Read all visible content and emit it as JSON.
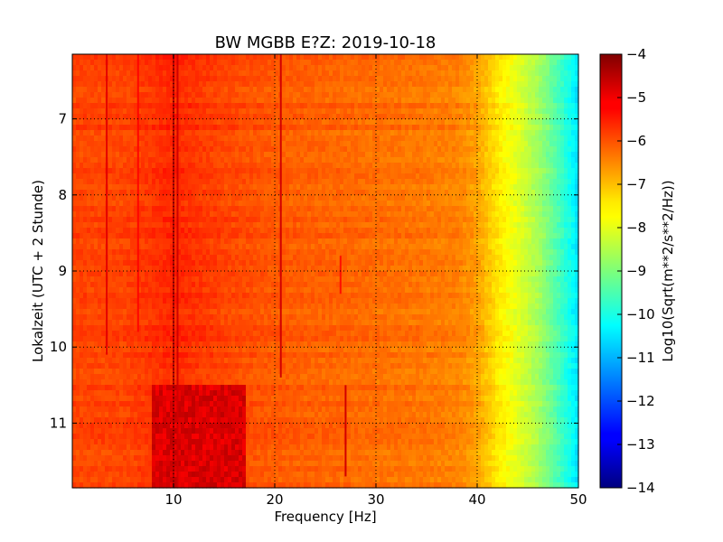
{
  "chart_data": {
    "type": "heatmap",
    "title": "BW MGBB E?Z: 2019-10-18",
    "xlabel": "Frequency [Hz]",
    "ylabel": "Lokalzeit (UTC + 2 Stunde)",
    "colorbar_label": "Log10(Sqrt(m**2/s**2/Hz))",
    "colormap": "jet",
    "xlim": [
      0,
      50
    ],
    "ylim": [
      11.85,
      6.15
    ],
    "y_axis_inverted": true,
    "clim": [
      -14,
      -4
    ],
    "x_ticks": [
      10,
      20,
      30,
      40,
      50
    ],
    "x_tick_labels": [
      "10",
      "20",
      "30",
      "40",
      "50"
    ],
    "y_ticks": [
      7,
      8,
      9,
      10,
      11
    ],
    "y_tick_labels": [
      "7",
      "8",
      "9",
      "10",
      "11"
    ],
    "cbar_ticks": [
      -4,
      -5,
      -6,
      -7,
      -8,
      -9,
      -10,
      -11,
      -12,
      -13,
      -14
    ],
    "cbar_tick_labels": [
      "−4",
      "−5",
      "−6",
      "−7",
      "−8",
      "−9",
      "−10",
      "−11",
      "−12",
      "−13",
      "−14"
    ],
    "grid": true,
    "grid_style": "dotted",
    "frequency_profile": {
      "frequency_hz": [
        0,
        5,
        10,
        15,
        20,
        25,
        30,
        35,
        38,
        40,
        42,
        44,
        46,
        48,
        50
      ],
      "log_amplitude": [
        -5.9,
        -5.9,
        -5.6,
        -5.9,
        -6.1,
        -6.2,
        -6.3,
        -6.4,
        -6.5,
        -6.8,
        -7.5,
        -8.0,
        -8.6,
        -9.5,
        -10.5
      ]
    },
    "spectral_lines": [
      {
        "frequency_hz": 3.4,
        "time_start": 6.15,
        "time_end": 10.1,
        "level": -5.0
      },
      {
        "frequency_hz": 6.5,
        "time_start": 6.15,
        "time_end": 9.8,
        "level": -5.3
      },
      {
        "frequency_hz": 10.0,
        "time_start": 6.15,
        "time_end": 11.85,
        "level": -4.6
      },
      {
        "frequency_hz": 10.4,
        "time_start": 6.15,
        "time_end": 11.85,
        "level": -4.8
      },
      {
        "frequency_hz": 20.6,
        "time_start": 6.15,
        "time_end": 10.4,
        "level": -4.8
      },
      {
        "frequency_hz": 26.5,
        "time_start": 8.8,
        "time_end": 9.3,
        "level": -5.4
      },
      {
        "frequency_hz": 27.0,
        "time_start": 10.5,
        "time_end": 11.7,
        "level": -4.8
      }
    ],
    "high_noise_period": {
      "time_start": 10.5,
      "time_end": 11.85,
      "frequency_range_hz": [
        8,
        17
      ],
      "level": -4.9
    }
  }
}
